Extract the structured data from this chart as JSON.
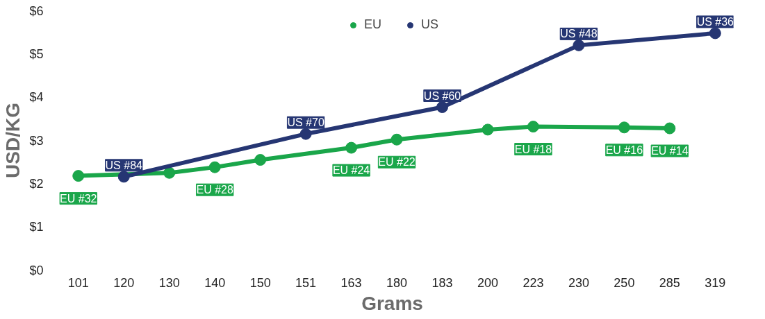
{
  "chart_data": {
    "type": "line",
    "xlabel": "Grams",
    "ylabel": "USD/KG",
    "categories": [
      "101",
      "120",
      "130",
      "140",
      "150",
      "151",
      "163",
      "180",
      "183",
      "200",
      "223",
      "230",
      "250",
      "285",
      "319"
    ],
    "series": [
      {
        "name": "EU",
        "color": "#1aa64a",
        "values": [
          2.18,
          null,
          2.25,
          2.38,
          2.55,
          null,
          2.83,
          3.02,
          null,
          3.25,
          3.32,
          null,
          3.3,
          3.28,
          null
        ]
      },
      {
        "name": "US",
        "color": "#263673",
        "values": [
          null,
          2.16,
          null,
          null,
          null,
          3.15,
          null,
          null,
          3.77,
          null,
          null,
          5.2,
          null,
          null,
          5.48
        ]
      }
    ],
    "annotations": [
      {
        "text": "EU #32",
        "x": "101",
        "y": 2.18
      },
      {
        "text": "US #84",
        "x": "120",
        "y": 2.16
      },
      {
        "text": "EU #28",
        "x": "140",
        "y": 2.38
      },
      {
        "text": "US #70",
        "x": "151",
        "y": 3.15
      },
      {
        "text": "EU #24",
        "x": "163",
        "y": 2.83
      },
      {
        "text": "EU #22",
        "x": "180",
        "y": 3.02
      },
      {
        "text": "US #60",
        "x": "183",
        "y": 3.77
      },
      {
        "text": "EU #18",
        "x": "223",
        "y": 3.32
      },
      {
        "text": "US #48",
        "x": "230",
        "y": 5.2
      },
      {
        "text": "EU #16",
        "x": "250",
        "y": 3.3
      },
      {
        "text": "EU #14",
        "x": "285",
        "y": 3.28
      },
      {
        "text": "US #36",
        "x": "319",
        "y": 5.48
      }
    ],
    "ylim": [
      0,
      6
    ],
    "yticks": [
      {
        "value": 0,
        "label": "$0"
      },
      {
        "value": 1,
        "label": "$1"
      },
      {
        "value": 2,
        "label": "$2"
      },
      {
        "value": 3,
        "label": "$3"
      },
      {
        "value": 4,
        "label": "$4"
      },
      {
        "value": 5,
        "label": "$5"
      },
      {
        "value": 6,
        "label": "$6"
      }
    ],
    "grid": false,
    "legend": "top",
    "marker": "circle",
    "line_style": "solid"
  }
}
